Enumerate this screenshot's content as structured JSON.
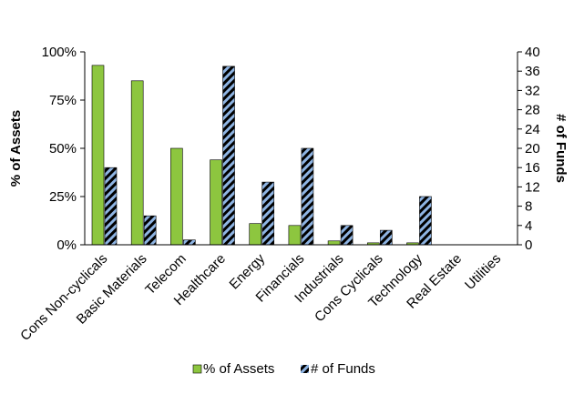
{
  "colors": {
    "assets_fill": "#8DC63F",
    "assets_stroke": "#000000",
    "funds_base": "#000000",
    "funds_stripe": "#8EB4E3"
  },
  "chart_data": {
    "type": "bar",
    "categories": [
      "Cons Non-cyclicals",
      "Basic Materials",
      "Telecom",
      "Healthcare",
      "Energy",
      "Financials",
      "Industrials",
      "Cons Cyclicals",
      "Technology",
      "Real Estate",
      "Utilities"
    ],
    "series": [
      {
        "name": "% of Assets",
        "axis": "left",
        "values": [
          93,
          85,
          50,
          44,
          11,
          10,
          2,
          1,
          1,
          0,
          0
        ]
      },
      {
        "name": "# of Funds",
        "axis": "right",
        "values": [
          16,
          6,
          1,
          37,
          13,
          20,
          4,
          3,
          10,
          0,
          0
        ]
      }
    ],
    "ylabel": "% of Assets",
    "y2label": "# of Funds",
    "ylim": [
      0,
      100
    ],
    "y2lim": [
      0,
      40
    ],
    "yticks": [
      "0%",
      "25%",
      "50%",
      "75%",
      "100%"
    ],
    "y2ticks": [
      "0",
      "4",
      "8",
      "12",
      "16",
      "20",
      "24",
      "28",
      "32",
      "36",
      "40"
    ],
    "grid": false,
    "legend_position": "bottom"
  }
}
